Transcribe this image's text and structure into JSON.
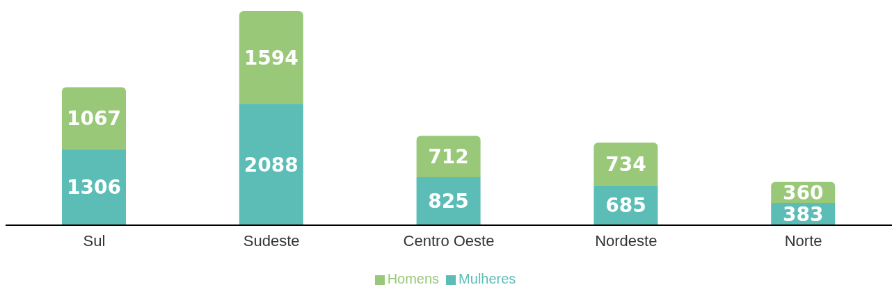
{
  "chart_data": {
    "type": "bar",
    "stacked": true,
    "categories": [
      "Sul",
      "Sudeste",
      "Centro Oeste",
      "Nordeste",
      "Norte"
    ],
    "series": [
      {
        "name": "Mulheres",
        "color": "#5bbdb6",
        "values": [
          1306,
          2088,
          825,
          685,
          383
        ]
      },
      {
        "name": "Homens",
        "color": "#98c878",
        "values": [
          1067,
          1594,
          712,
          734,
          360
        ]
      }
    ],
    "data_labels": true,
    "legend": "bottom",
    "grid": false
  }
}
